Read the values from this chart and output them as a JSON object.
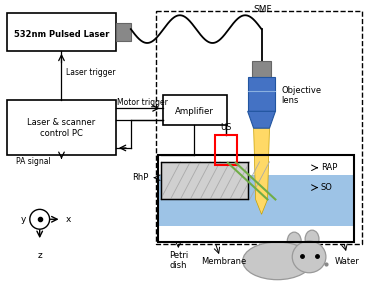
{
  "bg_color": "#ffffff",
  "box_color": "#000000",
  "dashed_color": "#000000",
  "fiber_color": "#4472c4",
  "beam_color": "#ffd966",
  "water_color": "#9dc3e6",
  "us_color": "#ff0000",
  "green_line_color": "#70ad47",
  "gray_color": "#909090",
  "mouse_color": "#c8c8c8",
  "labels": {
    "smf": "SMF",
    "obj": "Objective\nlens",
    "rap": "RAP",
    "so": "SO",
    "rhp": "RhP",
    "us": "US",
    "petri": "Petri\ndish",
    "membrane": "Membrane",
    "water": "Water",
    "pa": "PA signal",
    "laser_trig": "Laser trigger",
    "motor_trig": "Motor trigger",
    "laser": "532nm Pulsed Laser",
    "pc": "Laser & scanner\ncontrol PC",
    "amp": "Amplifier"
  }
}
